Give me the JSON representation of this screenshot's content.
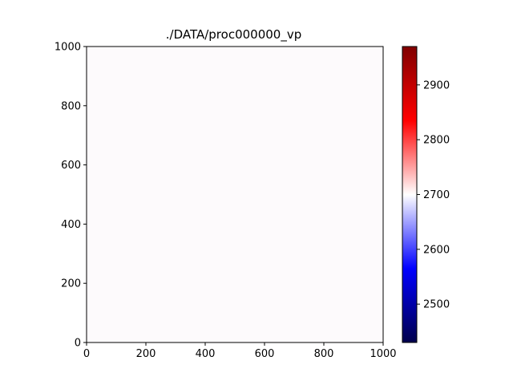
{
  "chart_data": {
    "type": "heatmap",
    "title": "./DATA/proc000000_vp",
    "xlabel": "",
    "ylabel": "",
    "xlim": [
      0,
      1000
    ],
    "ylim": [
      0,
      1000
    ],
    "x_ticks": [
      0,
      200,
      400,
      600,
      800,
      1000
    ],
    "y_ticks": [
      0,
      200,
      400,
      600,
      800,
      1000
    ],
    "grid": false,
    "field_value": 2700,
    "field_color": "#fdfafc",
    "colorbar": {
      "colormap": "seismic",
      "range": [
        2430,
        2970
      ],
      "ticks": [
        2500,
        2600,
        2700,
        2800,
        2900
      ],
      "position": "right"
    }
  }
}
